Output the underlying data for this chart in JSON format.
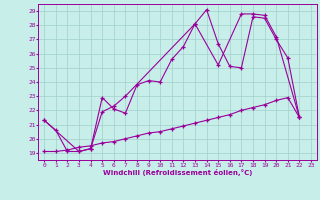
{
  "xlabel": "Windchill (Refroidissement éolien,°C)",
  "xlim": [
    -0.5,
    23.5
  ],
  "ylim": [
    18.5,
    29.5
  ],
  "yticks": [
    19,
    20,
    21,
    22,
    23,
    24,
    25,
    26,
    27,
    28,
    29
  ],
  "xticks": [
    0,
    1,
    2,
    3,
    4,
    5,
    6,
    7,
    8,
    9,
    10,
    11,
    12,
    13,
    14,
    15,
    16,
    17,
    18,
    19,
    20,
    21,
    22,
    23
  ],
  "background_color": "#c8eeea",
  "grid_color": "#a0d0cc",
  "line_color": "#990099",
  "line1_x": [
    0,
    1,
    2,
    3,
    4,
    5,
    6,
    7,
    8,
    9,
    10,
    11,
    12,
    13,
    14,
    15,
    16,
    17,
    18,
    19,
    20,
    21,
    22
  ],
  "line1_y": [
    21.3,
    20.6,
    19.1,
    19.1,
    19.3,
    22.9,
    22.1,
    21.8,
    23.8,
    24.1,
    24.0,
    25.6,
    26.5,
    28.1,
    29.1,
    26.7,
    25.1,
    25.0,
    28.6,
    28.5,
    27.0,
    25.7,
    21.5
  ],
  "line2_x": [
    0,
    3,
    4,
    5,
    6,
    7,
    13,
    15,
    17,
    18,
    19,
    20,
    22
  ],
  "line2_y": [
    21.3,
    19.1,
    19.3,
    21.9,
    22.3,
    23.0,
    28.1,
    25.2,
    28.8,
    28.8,
    28.7,
    27.2,
    21.5
  ],
  "line3_x": [
    0,
    1,
    2,
    3,
    4,
    5,
    6,
    7,
    8,
    9,
    10,
    11,
    12,
    13,
    14,
    15,
    16,
    17,
    18,
    19,
    20,
    21,
    22
  ],
  "line3_y": [
    19.1,
    19.1,
    19.2,
    19.4,
    19.5,
    19.7,
    19.8,
    20.0,
    20.2,
    20.4,
    20.5,
    20.7,
    20.9,
    21.1,
    21.3,
    21.5,
    21.7,
    22.0,
    22.2,
    22.4,
    22.7,
    22.9,
    21.5
  ]
}
